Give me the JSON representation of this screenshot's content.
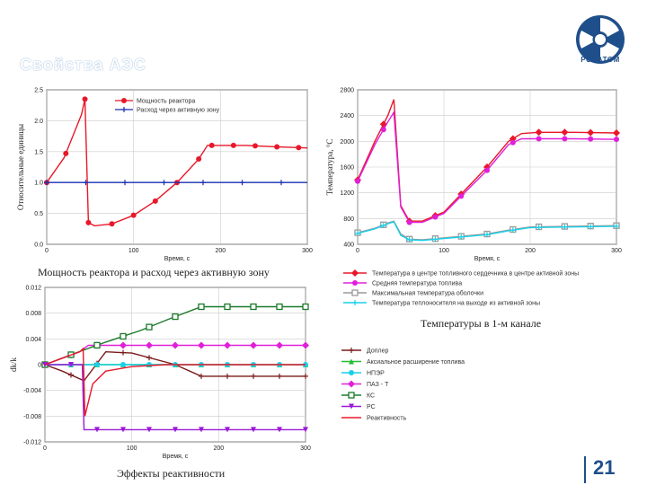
{
  "slide": {
    "page_number": "21",
    "logo_text": "РОСАТОМ",
    "heading": "Свойства АЭС"
  },
  "captions": {
    "power": "Мощность реактора и расход  через активную зону",
    "temps": "Температуры в 1-м канале",
    "reactivity": "Эффекты реактивности"
  },
  "colors": {
    "red": "#e8182a",
    "blue": "#1a2fb0",
    "magenta": "#e020d8",
    "grey": "#9a9a9a",
    "cyan": "#18d0e8",
    "darkred": "#7a1a1a",
    "green": "#1a7a2a",
    "violet": "#9a18d8",
    "lime": "#22bb33"
  },
  "chart_data": [
    {
      "id": "power",
      "type": "line",
      "xlabel": "Время, с",
      "ylabel": "Относительные единицы",
      "xlim": [
        0,
        300
      ],
      "ylim": [
        0,
        2.5
      ],
      "xticks": [
        "0",
        "100",
        "200",
        "300"
      ],
      "yticks": [
        "0.0",
        "0.5",
        "1.0",
        "1.5",
        "2.0",
        "2.5"
      ],
      "series": [
        {
          "name": "Мощность реактора",
          "color": "red",
          "marker": "circle",
          "x": [
            0,
            20,
            40,
            44,
            48,
            55,
            75,
            100,
            125,
            150,
            175,
            185,
            200,
            230,
            260,
            300
          ],
          "y": [
            1.0,
            1.4,
            2.1,
            2.35,
            0.35,
            0.3,
            0.33,
            0.47,
            0.7,
            1.0,
            1.38,
            1.6,
            1.6,
            1.6,
            1.58,
            1.56
          ]
        },
        {
          "name": "Расход через активную зону",
          "color": "blue",
          "marker": "plus",
          "x": [
            0,
            50,
            100,
            150,
            200,
            250,
            300
          ],
          "y": [
            1.0,
            1.0,
            1.0,
            1.0,
            1.0,
            1.0,
            1.0
          ]
        }
      ],
      "markers_x": {
        "Мощность реактора": [
          0,
          22,
          44,
          48,
          75,
          100,
          125,
          150,
          175,
          190,
          215,
          240,
          265,
          290
        ],
        "Расход через активную зону": [
          0,
          45,
          90,
          135,
          180,
          225,
          270
        ]
      }
    },
    {
      "id": "temps",
      "type": "line",
      "xlabel": "Время, с",
      "ylabel": "Температура, °С",
      "xlim": [
        0,
        300
      ],
      "ylim": [
        400,
        2800
      ],
      "xticks": [
        "0",
        "100",
        "200",
        "300"
      ],
      "yticks": [
        "400",
        "800",
        "1200",
        "1600",
        "2000",
        "2400",
        "2800"
      ],
      "series": [
        {
          "name": "Температура в центре топливного сердечника в центре активной зоны",
          "color": "red",
          "marker": "diamond",
          "x": [
            0,
            20,
            35,
            42,
            50,
            60,
            75,
            100,
            150,
            175,
            190,
            210,
            250,
            300
          ],
          "y": [
            1400,
            2000,
            2400,
            2650,
            1000,
            760,
            760,
            900,
            1600,
            2000,
            2120,
            2140,
            2140,
            2130
          ]
        },
        {
          "name": "Средняя температура топлива",
          "color": "magenta",
          "marker": "circle",
          "x": [
            0,
            20,
            35,
            42,
            50,
            60,
            75,
            100,
            150,
            175,
            190,
            210,
            250,
            300
          ],
          "y": [
            1380,
            1950,
            2300,
            2450,
            980,
            740,
            740,
            880,
            1550,
            1950,
            2040,
            2040,
            2040,
            2030
          ]
        },
        {
          "name": "Максимальная температура оболочки",
          "color": "grey",
          "marker": "square",
          "x": [
            0,
            20,
            35,
            42,
            50,
            60,
            75,
            100,
            150,
            175,
            200,
            250,
            300
          ],
          "y": [
            580,
            650,
            730,
            760,
            560,
            480,
            470,
            500,
            560,
            620,
            670,
            680,
            690
          ]
        },
        {
          "name": "Температура теплоносителя на выходе из активной зоны",
          "color": "cyan",
          "marker": "plus",
          "x": [
            0,
            20,
            35,
            42,
            50,
            60,
            75,
            100,
            150,
            175,
            200,
            250,
            300
          ],
          "y": [
            570,
            640,
            720,
            750,
            540,
            470,
            460,
            490,
            550,
            610,
            660,
            670,
            680
          ]
        }
      ]
    },
    {
      "id": "reactivity",
      "type": "line",
      "xlabel": "Время, с",
      "ylabel": "dk/k",
      "xlim": [
        0,
        300
      ],
      "ylim": [
        -0.012,
        0.012
      ],
      "xticks": [
        "0",
        "100",
        "200",
        "300"
      ],
      "yticks": [
        "-0.012",
        "-0.008",
        "-0.004",
        "0",
        "0.004",
        "0.008",
        "0.012"
      ],
      "series": [
        {
          "name": "Доплер",
          "color": "darkred",
          "marker": "plus",
          "x": [
            0,
            20,
            45,
            70,
            100,
            150,
            180,
            200,
            250,
            300
          ],
          "y": [
            0,
            -0.001,
            -0.0025,
            0.002,
            0.0018,
            0.0,
            -0.0018,
            -0.0018,
            -0.0018,
            -0.0018
          ]
        },
        {
          "name": "Аксиальное расширение топлива",
          "color": "lime",
          "marker": "triangle",
          "x": [
            0,
            45,
            100,
            150,
            200,
            250,
            300
          ],
          "y": [
            0,
            0.0,
            0.0,
            0.0,
            0.0,
            0.0,
            0.0
          ]
        },
        {
          "name": "НПЭР",
          "color": "cyan",
          "marker": "circle",
          "x": [
            0,
            45,
            100,
            150,
            200,
            250,
            300
          ],
          "y": [
            0,
            0.0,
            0.0,
            0.0,
            0.0,
            0.0,
            0.0
          ]
        },
        {
          "name": "ПАЗ - Т",
          "color": "magenta",
          "marker": "diamond",
          "x": [
            0,
            40,
            50,
            70,
            100,
            150,
            200,
            250,
            300
          ],
          "y": [
            0,
            0.002,
            0.003,
            0.003,
            0.003,
            0.003,
            0.003,
            0.003,
            0.003
          ]
        },
        {
          "name": "КС",
          "color": "green",
          "marker": "square",
          "x": [
            0,
            35,
            70,
            110,
            145,
            180,
            220,
            260,
            300
          ],
          "y": [
            0,
            0.0018,
            0.0035,
            0.0053,
            0.0072,
            0.009,
            0.009,
            0.009,
            0.009
          ]
        },
        {
          "name": "РС",
          "color": "violet",
          "marker": "triangle-down",
          "x": [
            0,
            43,
            45,
            70,
            100,
            150,
            200,
            250,
            300
          ],
          "y": [
            0,
            0.0,
            -0.0101,
            -0.0101,
            -0.0101,
            -0.0101,
            -0.0101,
            -0.0101,
            -0.0101
          ]
        },
        {
          "name": "Реактивность",
          "color": "red",
          "marker": "none",
          "x": [
            0,
            20,
            40,
            44,
            46,
            55,
            70,
            100,
            140,
            180,
            220,
            300
          ],
          "y": [
            0,
            0.001,
            0.002,
            0.0025,
            -0.008,
            -0.003,
            -0.001,
            -0.0003,
            0.0,
            0.0,
            0.0,
            0.0
          ]
        }
      ]
    }
  ],
  "legends": {
    "temps": [
      "Температура в центре топливного сердечника в центре активной зоны",
      "Средняя температура топлива",
      "Максимальная температура оболочки",
      "Температура теплоносителя на выходе из активной зоны"
    ],
    "reactivity": [
      "Доплер",
      "Аксиальное расширение топлива",
      "НПЭР",
      "ПАЗ - Т",
      "КС",
      "РС",
      "Реактивность"
    ]
  }
}
